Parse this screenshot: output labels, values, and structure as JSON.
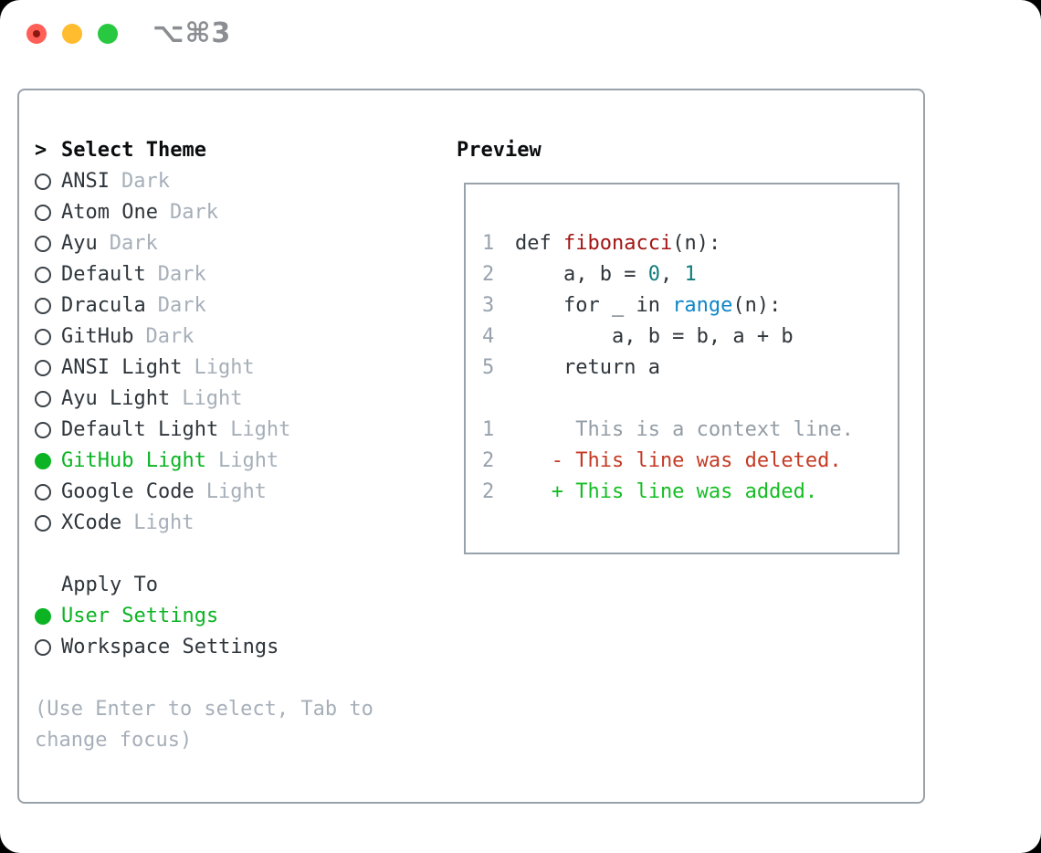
{
  "window": {
    "titlebar": {
      "shortcut": "⌥⌘3"
    }
  },
  "theme_selector": {
    "header": {
      "marker": ">",
      "label": "Select Theme"
    },
    "items": [
      {
        "name": "ANSI",
        "variant": "Dark",
        "selected": false
      },
      {
        "name": "Atom One",
        "variant": "Dark",
        "selected": false
      },
      {
        "name": "Ayu",
        "variant": "Dark",
        "selected": false
      },
      {
        "name": "Default",
        "variant": "Dark",
        "selected": false
      },
      {
        "name": "Dracula",
        "variant": "Dark",
        "selected": false
      },
      {
        "name": "GitHub",
        "variant": "Dark",
        "selected": false
      },
      {
        "name": "ANSI Light",
        "variant": "Light",
        "selected": false
      },
      {
        "name": "Ayu Light",
        "variant": "Light",
        "selected": false
      },
      {
        "name": "Default Light",
        "variant": "Light",
        "selected": false
      },
      {
        "name": "GitHub Light",
        "variant": "Light",
        "selected": true
      },
      {
        "name": "Google Code",
        "variant": "Light",
        "selected": false
      },
      {
        "name": "XCode",
        "variant": "Light",
        "selected": false
      }
    ],
    "apply_to": {
      "label": "Apply To",
      "options": [
        {
          "name": "User Settings",
          "selected": true
        },
        {
          "name": "Workspace Settings",
          "selected": false
        }
      ]
    },
    "hint_lines": [
      "(Use Enter to select, Tab to",
      "change focus)"
    ]
  },
  "preview": {
    "label": "Preview",
    "code_lines": [
      {
        "num": "1",
        "tokens": [
          {
            "text": "def ",
            "style": "plain"
          },
          {
            "text": "fibonacci",
            "style": "func"
          },
          {
            "text": "(n):",
            "style": "plain"
          }
        ]
      },
      {
        "num": "2",
        "tokens": [
          {
            "text": "    a, b = ",
            "style": "plain"
          },
          {
            "text": "0",
            "style": "num"
          },
          {
            "text": ", ",
            "style": "plain"
          },
          {
            "text": "1",
            "style": "num"
          }
        ]
      },
      {
        "num": "3",
        "tokens": [
          {
            "text": "    for _ in ",
            "style": "plain"
          },
          {
            "text": "range",
            "style": "builtin"
          },
          {
            "text": "(n):",
            "style": "plain"
          }
        ]
      },
      {
        "num": "4",
        "tokens": [
          {
            "text": "        a, b = b, a + b",
            "style": "plain"
          }
        ]
      },
      {
        "num": "5",
        "tokens": [
          {
            "text": "    return a",
            "style": "plain"
          }
        ]
      }
    ],
    "diff_lines": [
      {
        "num": "1",
        "tokens": [
          {
            "text": "     This is a context line.",
            "style": "ctx"
          }
        ]
      },
      {
        "num": "2",
        "tokens": [
          {
            "text": "   - This line was deleted.",
            "style": "del"
          }
        ]
      },
      {
        "num": "2",
        "tokens": [
          {
            "text": "   + This line was added.",
            "style": "add"
          }
        ]
      }
    ]
  },
  "colors": {
    "green_selected": "#0cb424",
    "diff_deleted": "#c43a24",
    "diff_added": "#16bd24",
    "syntax_function": "#a31515",
    "syntax_number": "#0f7d7c",
    "syntax_builtin": "#0d87c9",
    "text_dark": "#2e353b",
    "header_black": "#0a0c0e",
    "muted": "#a6afb9",
    "line_number": "#98a2ad",
    "context_gray": "#939da6",
    "border": "#98a2ab",
    "traffic_red": "#ff5f57",
    "traffic_yellow": "#febc2e",
    "traffic_green": "#28c840"
  }
}
